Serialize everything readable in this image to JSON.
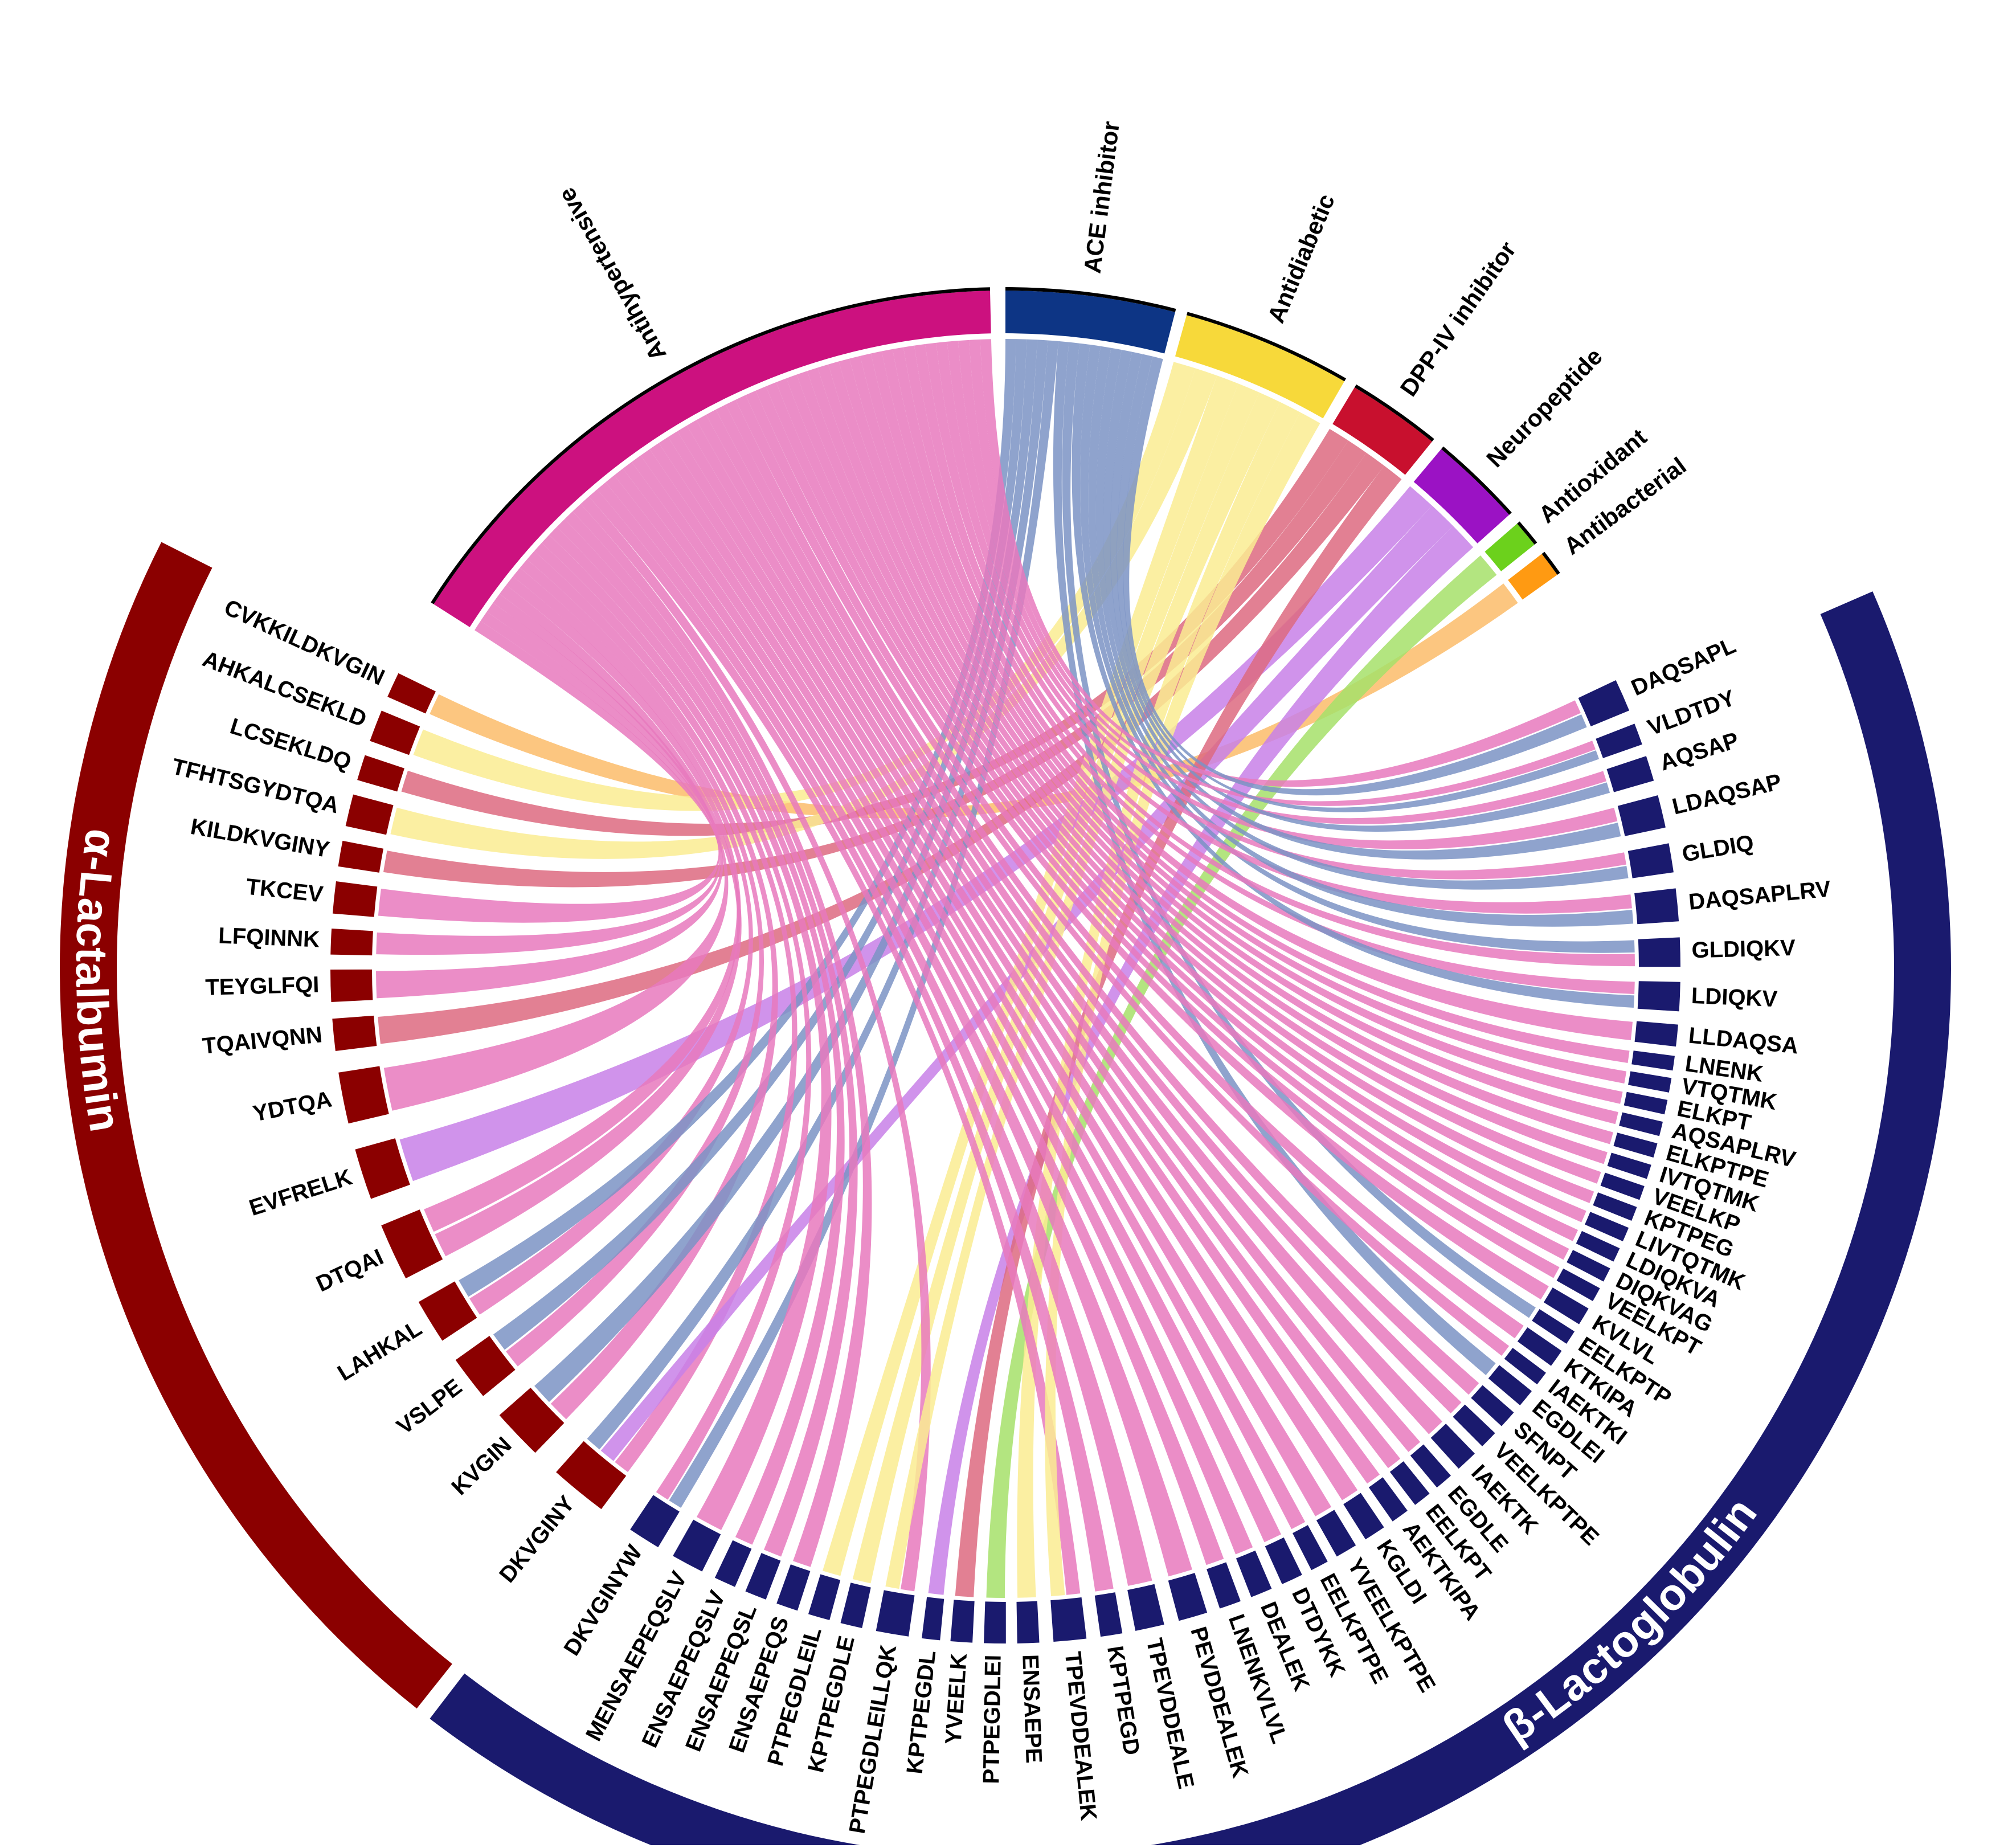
{
  "diagram": {
    "type": "chord",
    "proteins": [
      {
        "name": "α-Lactalbumin",
        "color": "#8b0000"
      },
      {
        "name": "β-Lactoglobulin",
        "color": "#1a1a6e"
      }
    ],
    "activities": [
      {
        "name": "Antihypertensive",
        "color": "#cc117f",
        "ribbon": "#e879bd"
      },
      {
        "name": "ACE inhibitor",
        "color": "#0d3585",
        "ribbon": "#7b93c4"
      },
      {
        "name": "Antidiabetic",
        "color": "#f7d93a",
        "ribbon": "#faec92"
      },
      {
        "name": "DPP-IV inhibitor",
        "color": "#c8102e",
        "ribbon": "#dd6a80"
      },
      {
        "name": "Neuropeptide",
        "color": "#9b12c4",
        "ribbon": "#c880e8"
      },
      {
        "name": "Antioxidant",
        "color": "#6cd11c",
        "ribbon": "#a6e06a"
      },
      {
        "name": "Antibacterial",
        "color": "#ff9a12",
        "ribbon": "#fbbc6a"
      }
    ],
    "alpha_peptides": [
      "CVKKILDKVGIN",
      "AHKALCSEKLD",
      "LCSEKLDQ",
      "TFHTSGYDTQA",
      "KILDKVGINY",
      "TKCEV",
      "LFQINNK",
      "TEYGLFQI",
      "TQAIVQNN",
      "YDTQA",
      "EVFRELK",
      "DTQAI",
      "LAHKAL",
      "VSLPE",
      "KVGIN",
      "DKVGINY"
    ],
    "beta_peptides": [
      "DKVGINYW",
      "MENSAEPEQSLV",
      "ENSAEPEQSLV",
      "ENSAEPEQSL",
      "ENSAEPEQS",
      "PTPEGDLEIL",
      "KPTPEGDLE",
      "PTPEGDLEILLQK",
      "KPTPEGDL",
      "YVEELK",
      "PTPEGDLEI",
      "ENSAEPE",
      "TPEVDDEALEK",
      "KPTPEGD",
      "TPEVDDEALE",
      "PEVDDEALEK",
      "LNENKVLVL",
      "DEALEK",
      "DTDYKK",
      "EELKPTPE",
      "YVEELKPTPE",
      "KGLDI",
      "AEKTKIPA",
      "EELKPT",
      "EGDLE",
      "IAEKTK",
      "VEELKPTPE",
      "SFNPT",
      "EGDLEI",
      "IAEKTKI",
      "KTKIPA",
      "EELKPTP",
      "KVLVL",
      "VEELKPT",
      "DIQKVAG",
      "LDIQKVA",
      "LIVTQTMK",
      "KPTPEG",
      "VEELKP",
      "IVTQTMK",
      "ELKPTPE",
      "AQSAPLRV",
      "ELKPT",
      "VTQTMK",
      "LNENK",
      "LLDAQSA",
      "LDIQKV",
      "GLDIQKV",
      "DAQSAPLRV",
      "GLDIQ",
      "LDAQSAP",
      "AQSAP",
      "VLDTDY",
      "DAQSAPL"
    ]
  }
}
